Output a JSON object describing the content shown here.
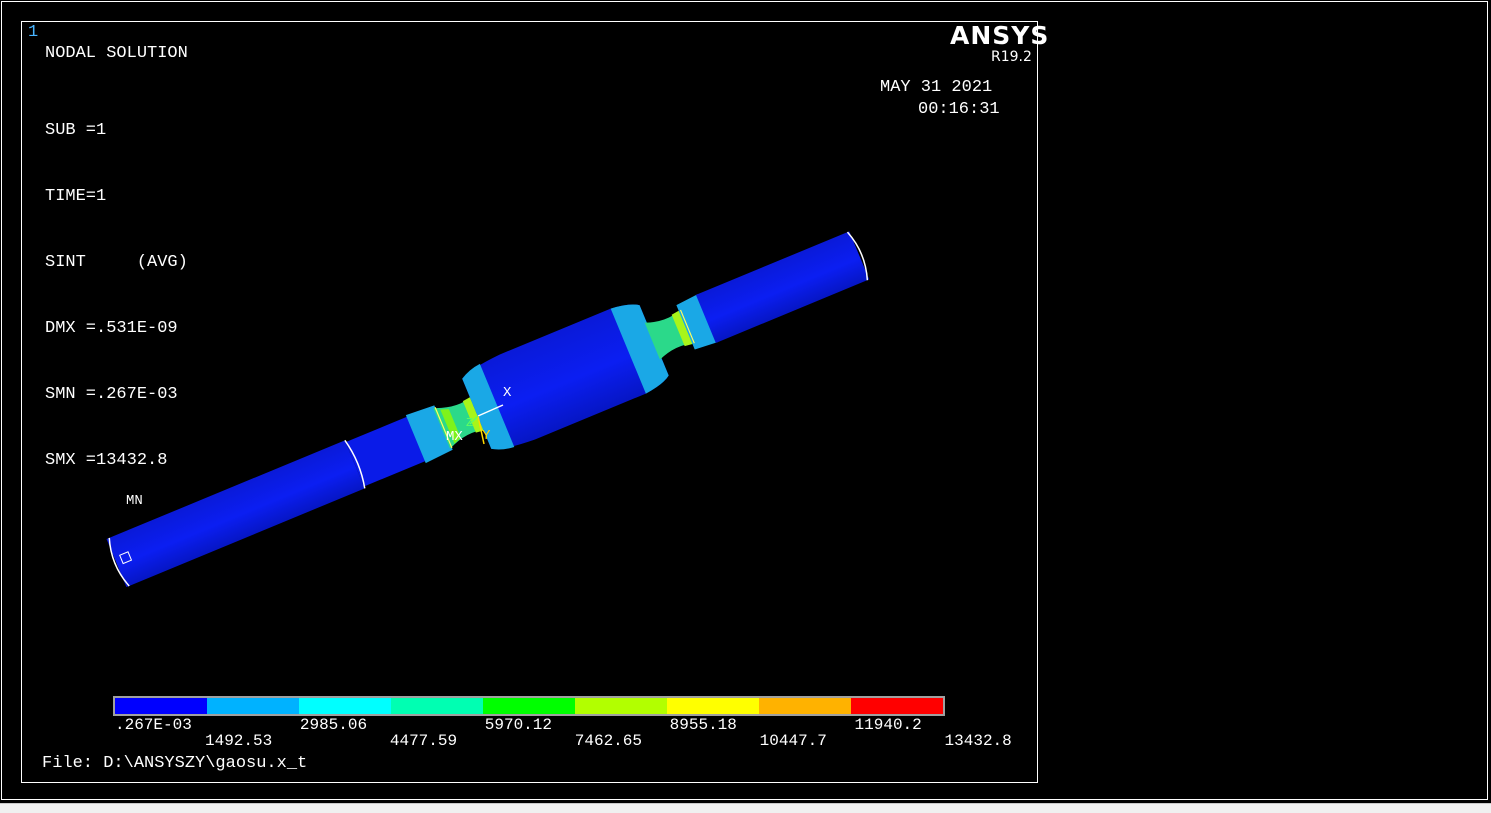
{
  "window": {
    "number": "1",
    "title": "NODAL SOLUTION",
    "brand": "ANSYS",
    "version": "R19.2",
    "date": "MAY 31 2021",
    "time": "00:16:31"
  },
  "legend": {
    "sub": "SUB =1",
    "time": "TIME=1",
    "sint": "SINT     (AVG)",
    "dmx": "DMX =.531E-09",
    "smn": "SMN =.267E-03",
    "smx": "SMX =13432.8"
  },
  "markers": {
    "mn": "MN",
    "mx": "MX",
    "x_axis": "X",
    "y_axis": "Y",
    "z_axis": "Z"
  },
  "colorbar": {
    "colors": [
      "#0000ff",
      "#00b2ff",
      "#00ffff",
      "#00ffb2",
      "#00ff00",
      "#b2ff00",
      "#ffff00",
      "#ffb200",
      "#ff0000"
    ],
    "labels_top": [
      ".267E-03",
      "2985.06",
      "5970.12",
      "8955.18",
      "11940.2"
    ],
    "labels_bottom": [
      "1492.53",
      "4477.59",
      "7462.65",
      "10447.7",
      "13432.8"
    ]
  },
  "file": "File: D:\\ANSYSZY\\gaosu.x_t"
}
